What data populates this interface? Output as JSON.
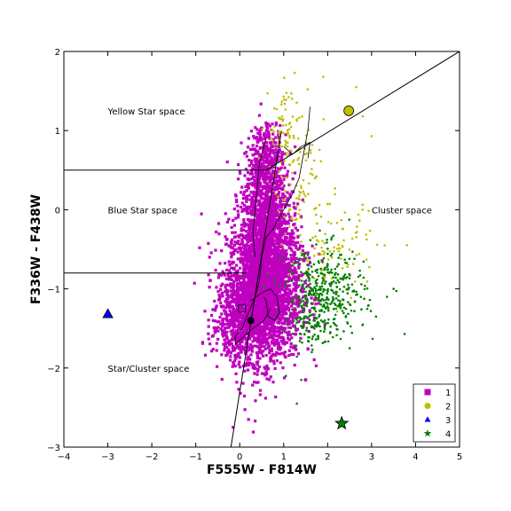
{
  "chart_data": {
    "type": "scatter",
    "title": "",
    "xlabel": "F555W - F814W",
    "ylabel": "F336W - F438W",
    "xlim": [
      -4,
      5
    ],
    "ylim": [
      -3,
      2
    ],
    "xticks": [
      -4,
      -3,
      -2,
      -1,
      0,
      1,
      2,
      3,
      4,
      5
    ],
    "yticks": [
      -3,
      -2,
      -1,
      0,
      1,
      2
    ],
    "grid": false,
    "legend_position": "bottom-right",
    "series": [
      {
        "name": "1",
        "color": "#bf00bf",
        "marker": "square",
        "clouds": [
          {
            "cx": 0.55,
            "cy": -1.0,
            "sx": 0.42,
            "sy": 0.45,
            "n": 2600
          },
          {
            "cx": 0.6,
            "cy": -0.15,
            "sx": 0.28,
            "sy": 0.45,
            "n": 1100
          },
          {
            "cx": 0.6,
            "cy": 0.6,
            "sx": 0.18,
            "sy": 0.25,
            "n": 280
          },
          {
            "cx": 0.05,
            "cy": -1.45,
            "sx": 0.35,
            "sy": 0.22,
            "n": 500
          }
        ],
        "extra_points": [
          [
            0.2,
            -2.65
          ],
          [
            0.35,
            -2.67
          ],
          [
            -0.15,
            -2.75
          ],
          [
            -0.3,
            -1.15
          ]
        ]
      },
      {
        "name": "2",
        "color": "#bfbf00",
        "marker": "circle",
        "clouds": [
          {
            "cx": 1.05,
            "cy": 1.0,
            "sx": 0.2,
            "sy": 0.3,
            "n": 70
          },
          {
            "cx": 1.35,
            "cy": 0.3,
            "sx": 0.3,
            "sy": 0.4,
            "n": 90
          },
          {
            "cx": 2.2,
            "cy": -0.55,
            "sx": 0.45,
            "sy": 0.3,
            "n": 90
          }
        ],
        "extra_points": [
          [
            1.25,
            1.73
          ],
          [
            1.9,
            1.68
          ],
          [
            2.65,
            1.55
          ],
          [
            3.0,
            0.93
          ],
          [
            3.3,
            -0.45
          ],
          [
            2.8,
            1.18
          ],
          [
            1.65,
            0.82
          ]
        ]
      },
      {
        "name": "3",
        "color": "#0000ff",
        "marker": "triangle",
        "clouds": [],
        "extra_points": []
      },
      {
        "name": "4",
        "color": "#008000",
        "marker": "star",
        "clouds": [
          {
            "cx": 1.95,
            "cy": -1.05,
            "sx": 0.45,
            "sy": 0.28,
            "n": 380
          },
          {
            "cx": 1.6,
            "cy": -1.5,
            "sx": 0.25,
            "sy": 0.15,
            "n": 60
          }
        ],
        "extra_points": [
          [
            3.75,
            -1.57
          ],
          [
            3.1,
            -1.35
          ],
          [
            3.35,
            -1.1
          ],
          [
            1.05,
            -2.1
          ],
          [
            1.4,
            -2.15
          ],
          [
            1.3,
            -2.45
          ],
          [
            2.5,
            -1.75
          ],
          [
            2.8,
            -1.45
          ],
          [
            3.5,
            -1.0
          ]
        ]
      }
    ],
    "special_markers": [
      {
        "series": "1",
        "marker": "square",
        "x": 0.05,
        "y": -1.25,
        "color": "#bf00bf"
      },
      {
        "series": "1",
        "marker": "circle",
        "x": 0.25,
        "y": -1.4,
        "color": "#bf00bf"
      },
      {
        "series": "2",
        "marker": "circle",
        "x": 2.48,
        "y": 1.25,
        "color": "#bfbf00"
      },
      {
        "series": "3",
        "marker": "triangle",
        "x": -3.0,
        "y": -1.32,
        "color": "#0000ff"
      },
      {
        "series": "4",
        "marker": "star",
        "x": 2.32,
        "y": -2.7,
        "color": "#008000"
      }
    ],
    "boundary_lines": [
      {
        "points": [
          [
            -4,
            0.5
          ],
          [
            0.6,
            0.5
          ]
        ]
      },
      {
        "points": [
          [
            -4,
            -0.8
          ],
          [
            0.15,
            -0.8
          ]
        ]
      },
      {
        "points": [
          [
            0.6,
            0.5
          ],
          [
            5,
            2.0
          ]
        ]
      },
      {
        "points": [
          [
            -0.2,
            -3.0
          ],
          [
            0.95,
            1.0
          ]
        ]
      }
    ],
    "isochrone_tracks": [
      {
        "points": [
          [
            1.6,
            1.3
          ],
          [
            1.55,
            1.0
          ],
          [
            1.45,
            0.7
          ],
          [
            1.35,
            0.4
          ],
          [
            1.2,
            0.2
          ],
          [
            1.05,
            0.05
          ],
          [
            0.9,
            -0.1
          ],
          [
            0.75,
            -0.25
          ],
          [
            0.6,
            -0.35
          ],
          [
            0.5,
            -0.6
          ],
          [
            0.45,
            -0.9
          ],
          [
            0.35,
            -1.1
          ],
          [
            0.2,
            -1.3
          ],
          [
            0.05,
            -1.5
          ],
          [
            -0.1,
            -1.6
          ],
          [
            -0.1,
            -1.7
          ],
          [
            0.0,
            -1.65
          ],
          [
            0.3,
            -1.5
          ],
          [
            0.55,
            -1.4
          ],
          [
            0.7,
            -1.25
          ]
        ]
      },
      {
        "points": [
          [
            0.6,
            0.9
          ],
          [
            0.45,
            0.6
          ],
          [
            0.4,
            0.3
          ],
          [
            0.35,
            0.0
          ],
          [
            0.3,
            -0.3
          ],
          [
            0.35,
            -0.6
          ]
        ]
      },
      {
        "points": [
          [
            1.0,
            0.8
          ],
          [
            1.2,
            0.7
          ],
          [
            1.4,
            0.8
          ],
          [
            1.6,
            0.85
          ],
          [
            1.55,
            0.65
          ]
        ]
      },
      {
        "points": [
          [
            0.25,
            -1.15
          ],
          [
            0.5,
            -1.05
          ],
          [
            0.7,
            -1.0
          ],
          [
            0.85,
            -1.1
          ],
          [
            0.9,
            -1.3
          ],
          [
            0.8,
            -1.4
          ],
          [
            0.65,
            -1.35
          ],
          [
            0.6,
            -1.15
          ],
          [
            0.55,
            -1.1
          ]
        ]
      }
    ],
    "annotations": [
      {
        "text": "Yellow Star space",
        "x": -3.0,
        "y": 1.25
      },
      {
        "text": "Blue Star space",
        "x": -3.0,
        "y": 0.0
      },
      {
        "text": "Cluster space",
        "x": 3.0,
        "y": 0.0
      },
      {
        "text": "Star/Cluster space",
        "x": -3.0,
        "y": -2.0
      }
    ]
  }
}
